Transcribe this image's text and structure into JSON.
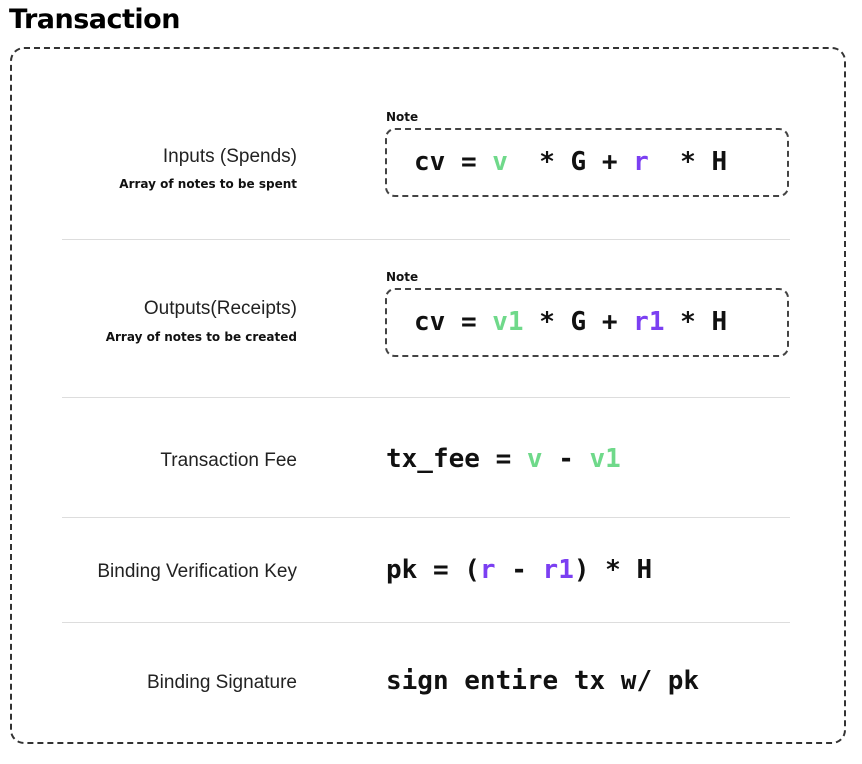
{
  "title": "Transaction",
  "rows": [
    {
      "label": "Inputs (Spends)",
      "sublabel": "Array of notes to be spent",
      "note_tag": "Note",
      "formula": {
        "p1": "cv = ",
        "v": "v",
        "p2": "  * G + ",
        "r": "r",
        "p3": "  * H"
      }
    },
    {
      "label": "Outputs(Receipts)",
      "sublabel": "Array of notes to be created",
      "note_tag": "Note",
      "formula": {
        "p1": "cv = ",
        "v": "v1",
        "p2": " * G + ",
        "r": "r1",
        "p3": " * H"
      }
    },
    {
      "label": "Transaction Fee",
      "formula": {
        "p1": "tx_fee = ",
        "v": "v",
        "p2": " - ",
        "v2": "v1"
      }
    },
    {
      "label": "Binding Verification Key",
      "formula": {
        "p1": "pk = (",
        "r": "r",
        "p2": " - ",
        "r2": "r1",
        "p3": ") * H"
      }
    },
    {
      "label": "Binding Signature",
      "formula": {
        "p1": "sign entire tx w/ pk"
      }
    }
  ],
  "colors": {
    "value_green": "#6fd98a",
    "randomness_purple": "#7b3ff2"
  }
}
